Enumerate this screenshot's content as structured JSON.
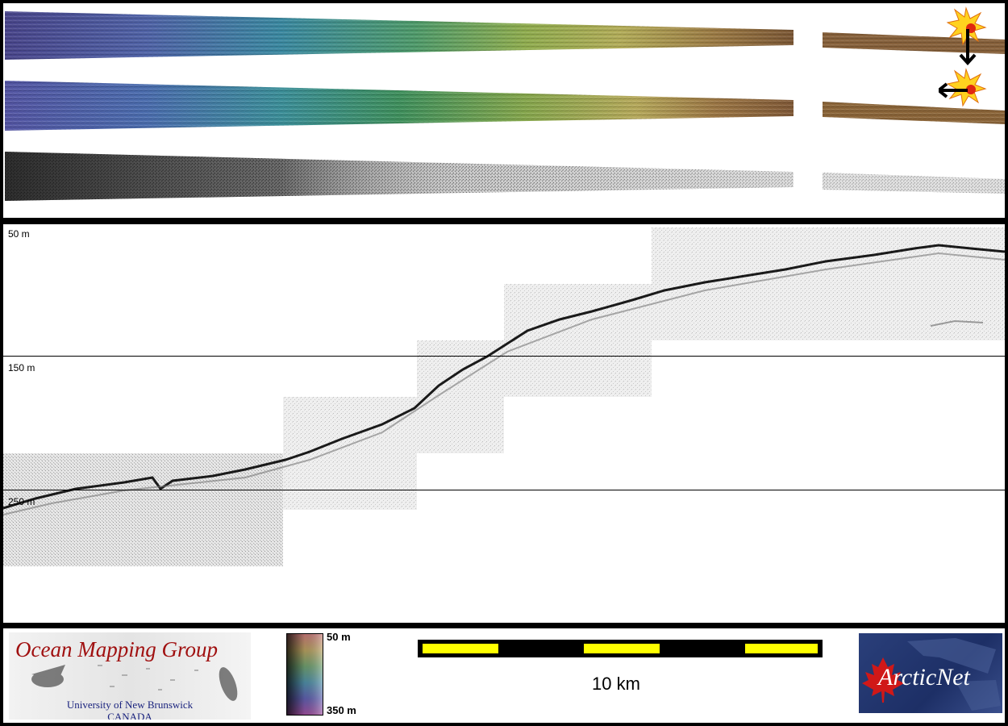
{
  "profile": {
    "depth_labels": [
      "50 m",
      "150 m",
      "250 m"
    ]
  },
  "legend": {
    "colorbar": {
      "top_label": "50 m",
      "bottom_label": "350 m"
    },
    "scale_label": "10 km"
  },
  "logos": {
    "omg_title": "Ocean Mapping Group",
    "omg_university": "University of New Brunswick",
    "omg_country": "CANADA",
    "arcticnet": "ArcticNet"
  },
  "icons": [
    "sun-icon",
    "arrow-down-icon",
    "arrow-left-icon",
    "maple-leaf-icon"
  ],
  "colors": {
    "sun_yellow": "#ffd21f",
    "sun_red": "#e02810",
    "scale_yellow": "#ffff00",
    "omg_red": "#a01010",
    "omg_blue": "#1a237e",
    "arctic_blue": "#1d2f66",
    "maple_red": "#d01818"
  }
}
